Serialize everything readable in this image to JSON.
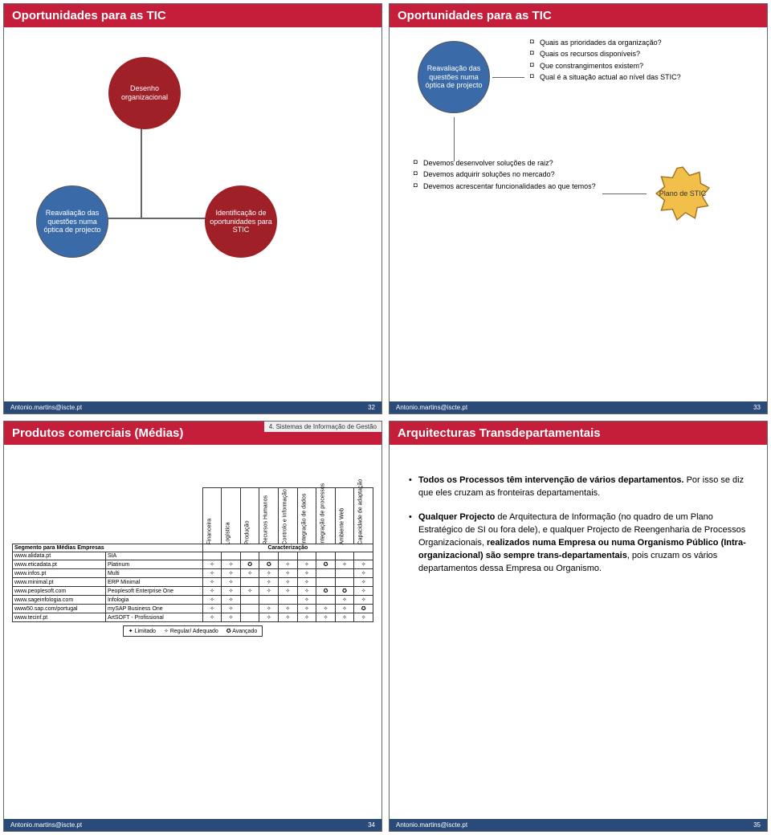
{
  "footer_email": "Antonio.martins@iscte.pt",
  "slide1": {
    "title": "Oportunidades para as TIC",
    "page": "32",
    "nodes": {
      "design": "Desenho organizacional",
      "reav": "Reavaliação das questões numa óptica de projecto",
      "ident": "Identificação de oportunidades para STIC"
    }
  },
  "slide2": {
    "title": "Oportunidades para as TIC",
    "page": "33",
    "reav": "Reavaliação das questões numa óptica de projecto",
    "bullets_top": [
      "Quais as prioridades da organização?",
      "Quais os recursos disponíveis?",
      "Que constrangimentos existem?",
      "Qual é a situação actual ao nível das STIC?"
    ],
    "bullets_mid": [
      "Devemos desenvolver soluções de raiz?",
      "Devemos adquirir soluções no mercado?",
      "Devemos acrescentar funcionalidades ao que temos?"
    ],
    "star": "Plano de STIC"
  },
  "slide3": {
    "title": "Produtos comerciais (Médias)",
    "subtitle": "4. Sistemas de Informação de Gestão",
    "page": "34",
    "segment_header": "Segmento para Médias Empresas",
    "char_header": "Caracterização",
    "columns": [
      "Financeira",
      "Logística",
      "Produção",
      "Recursos Humanos",
      "Controlo e Informação",
      "Integração de dados",
      "Integração de processos",
      "Ambiente Web",
      "Capacidade de adaptação"
    ],
    "rows": [
      {
        "site": "www.alidata.pt",
        "prod": "SIA",
        "v": [
          "",
          "",
          "",
          "",
          "",
          "",
          "",
          "",
          ""
        ]
      },
      {
        "site": "www.eticadata.pt",
        "prod": "Platinum",
        "v": [
          "✧",
          "✧",
          "✪",
          "✪",
          "✧",
          "✧",
          "✪",
          "✧",
          "✧"
        ]
      },
      {
        "site": "www.infos.pt",
        "prod": "Multi",
        "v": [
          "✧",
          "✧",
          "✧",
          "✧",
          "✧",
          "✧",
          "",
          "",
          "✧"
        ]
      },
      {
        "site": "www.minimal.pt",
        "prod": "ERP Minimal",
        "v": [
          "✧",
          "✧",
          "",
          "✧",
          "✧",
          "✧",
          "",
          "",
          "✧"
        ]
      },
      {
        "site": "www.peoplesoft.com",
        "prod": "Peoplesoft Enterprise One",
        "v": [
          "✧",
          "✧",
          "✧",
          "✧",
          "✧",
          "✧",
          "✪",
          "✪",
          "✧"
        ]
      },
      {
        "site": "www.sageinfologia.com",
        "prod": "Infologia",
        "v": [
          "✧",
          "✧",
          "",
          "",
          "",
          "✧",
          "",
          "✧",
          "✧"
        ]
      },
      {
        "site": "www50.sap.com/portugal",
        "prod": "mySAP Business One",
        "v": [
          "✧",
          "✧",
          "",
          "✧",
          "✧",
          "✧",
          "✧",
          "✧",
          "✪"
        ]
      },
      {
        "site": "www.tecinf.pt",
        "prod": "ArtSOFT - Profissional",
        "v": [
          "✧",
          "✧",
          "",
          "✧",
          "✧",
          "✧",
          "✧",
          "✧",
          "✧"
        ]
      }
    ],
    "legend": {
      "lim": "✦ Limitado",
      "reg": "✧ Regular/ Adequado",
      "adv": "✪ Avançado"
    }
  },
  "slide4": {
    "title": "Arquitecturas Transdepartamentais",
    "page": "35",
    "p1_a": "Todos os Processos têm intervenção de vários departamentos.",
    "p1_b": " Por isso se diz que eles cruzam as fronteiras departamentais.",
    "p2_a": "Qualquer Projecto",
    "p2_b": " de Arquitectura de Informação (no quadro de um Plano Estratégico de SI ou fora dele), e qualquer Projecto de Reengenharia de Processos Organizacionais, ",
    "p2_c": "realizados numa Empresa ou numa Organismo Público (Intra-organizacional) são sempre trans-departamentais",
    "p2_d": ", pois cruzam os vários departamentos dessa Empresa ou Organismo."
  }
}
